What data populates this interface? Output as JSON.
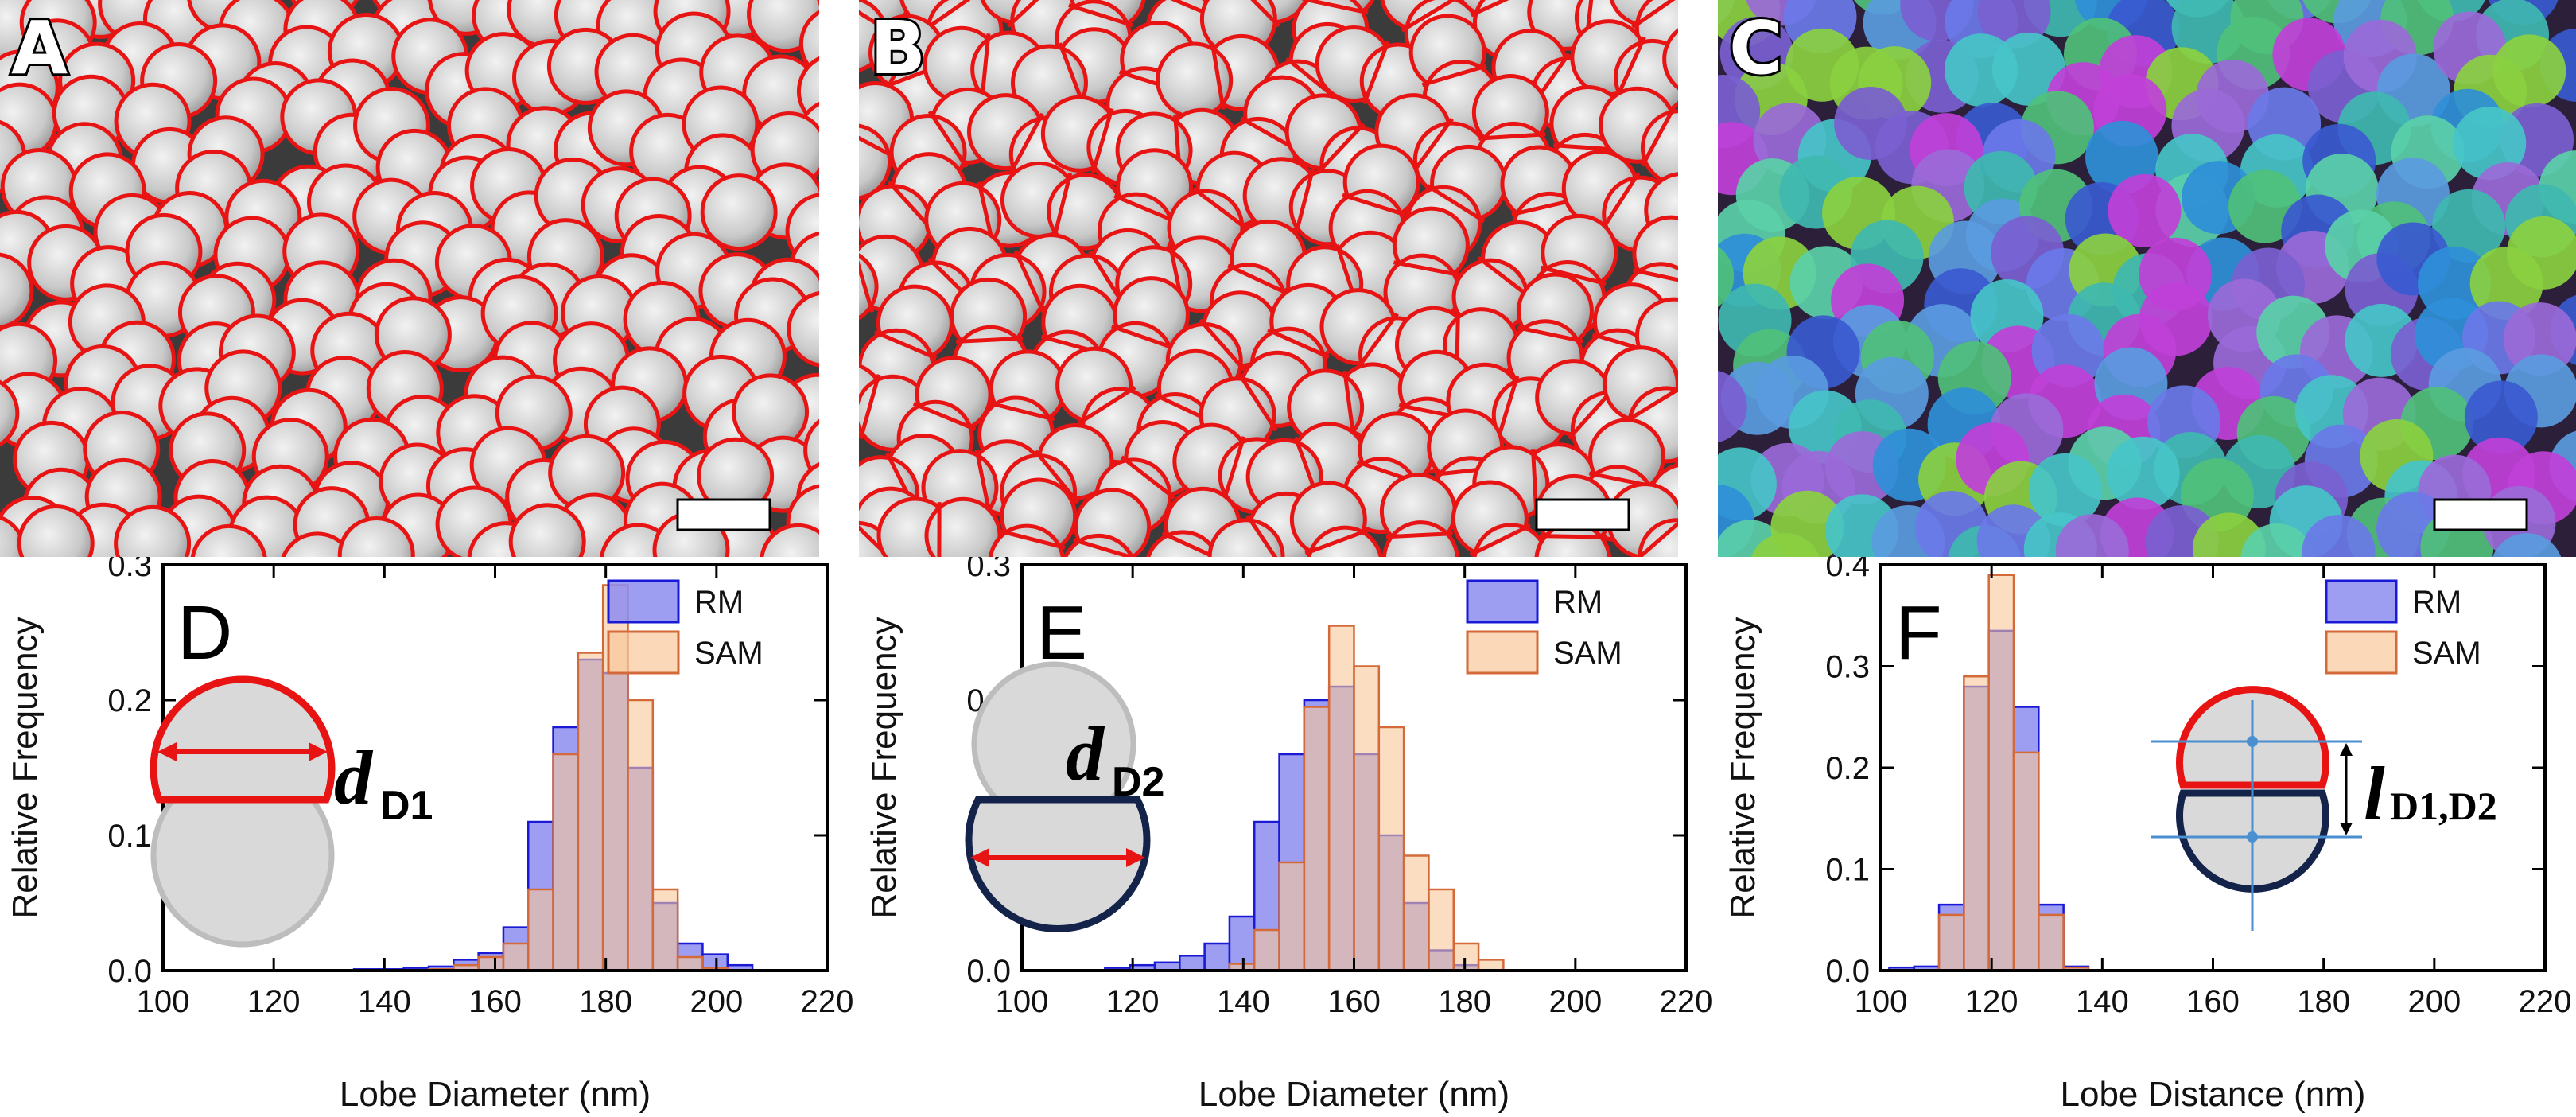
{
  "panels": {
    "A": {
      "label": "A"
    },
    "B": {
      "label": "B"
    },
    "C": {
      "label": "C"
    }
  },
  "colors": {
    "rm_fill": "#8c8cf0",
    "rm_edge": "#1a1ad6",
    "sam_fill": "#f8c89a",
    "sam_edge": "#d46a3a",
    "overlap": "#c77a58",
    "outline_red": "#e81414",
    "dark_navy": "#14234a",
    "guide_blue": "#4a8fd0"
  },
  "chart_data": [
    {
      "type": "bar",
      "panel": "D",
      "xlabel": "Lobe Diameter (nm)",
      "ylabel": "Relative Frequency",
      "xlim": [
        100,
        220
      ],
      "ylim": [
        0,
        0.3
      ],
      "xticks": [
        "100",
        "120",
        "140",
        "160",
        "180",
        "200",
        "220"
      ],
      "yticks": [
        "0.0",
        "0.1",
        "0.2",
        "0.3"
      ],
      "bin_width": 4.5,
      "legend": [
        "RM",
        "SAM"
      ],
      "legend_position": "top-right",
      "annotation": {
        "symbol": "d",
        "subscript": "D1"
      },
      "series": [
        {
          "name": "RM",
          "bins": [
            [
              134.5,
              0.001
            ],
            [
              139,
              0.001
            ],
            [
              143.5,
              0.002
            ],
            [
              148,
              0.003
            ],
            [
              152.5,
              0.008
            ],
            [
              157,
              0.013
            ],
            [
              161.5,
              0.032
            ],
            [
              166,
              0.11
            ],
            [
              170.5,
              0.18
            ],
            [
              175,
              0.23
            ],
            [
              179.5,
              0.22
            ],
            [
              184,
              0.15
            ],
            [
              188.5,
              0.05
            ],
            [
              193,
              0.02
            ],
            [
              197.5,
              0.012
            ],
            [
              202,
              0.004
            ]
          ]
        },
        {
          "name": "SAM",
          "bins": [
            [
              148,
              0.001
            ],
            [
              152.5,
              0.004
            ],
            [
              157,
              0.01
            ],
            [
              161.5,
              0.02
            ],
            [
              166,
              0.06
            ],
            [
              170.5,
              0.16
            ],
            [
              175,
              0.235
            ],
            [
              179.5,
              0.285
            ],
            [
              184,
              0.2
            ],
            [
              188.5,
              0.06
            ],
            [
              193,
              0.01
            ],
            [
              197.5,
              0.002
            ]
          ]
        }
      ]
    },
    {
      "type": "bar",
      "panel": "E",
      "xlabel": "Lobe Diameter (nm)",
      "ylabel": "Relative Frequency",
      "xlim": [
        100,
        220
      ],
      "ylim": [
        0,
        0.3
      ],
      "xticks": [
        "100",
        "120",
        "140",
        "160",
        "180",
        "200",
        "220"
      ],
      "yticks": [
        "0.0",
        "0.1",
        "0.2",
        "0.3"
      ],
      "bin_width": 4.5,
      "legend": [
        "RM",
        "SAM"
      ],
      "legend_position": "top-right",
      "annotation": {
        "symbol": "d",
        "subscript": "D2"
      },
      "series": [
        {
          "name": "RM",
          "bins": [
            [
              115,
              0.002
            ],
            [
              119.5,
              0.004
            ],
            [
              124,
              0.006
            ],
            [
              128.5,
              0.011
            ],
            [
              133,
              0.02
            ],
            [
              137.5,
              0.04
            ],
            [
              142,
              0.11
            ],
            [
              146.5,
              0.16
            ],
            [
              151,
              0.2
            ],
            [
              155.5,
              0.21
            ],
            [
              160,
              0.16
            ],
            [
              164.5,
              0.1
            ],
            [
              169,
              0.05
            ],
            [
              173.5,
              0.015
            ],
            [
              178,
              0.004
            ]
          ]
        },
        {
          "name": "SAM",
          "bins": [
            [
              137.5,
              0.005
            ],
            [
              142,
              0.03
            ],
            [
              146.5,
              0.08
            ],
            [
              151,
              0.195
            ],
            [
              155.5,
              0.255
            ],
            [
              160,
              0.225
            ],
            [
              164.5,
              0.18
            ],
            [
              169,
              0.085
            ],
            [
              173.5,
              0.06
            ],
            [
              178,
              0.02
            ],
            [
              182.5,
              0.008
            ]
          ]
        }
      ]
    },
    {
      "type": "bar",
      "panel": "F",
      "xlabel": "Lobe Distance (nm)",
      "ylabel": "Relative Frequency",
      "xlim": [
        100,
        220
      ],
      "ylim": [
        0,
        0.4
      ],
      "xticks": [
        "100",
        "120",
        "140",
        "160",
        "180",
        "200",
        "220"
      ],
      "yticks": [
        "0.0",
        "0.1",
        "0.2",
        "0.3",
        "0.4"
      ],
      "bin_width": 4.5,
      "legend": [
        "RM",
        "SAM"
      ],
      "legend_position": "top-right",
      "annotation": {
        "symbol": "l",
        "subscript": "D1,D2"
      },
      "series": [
        {
          "name": "RM",
          "bins": [
            [
              101.5,
              0.003
            ],
            [
              106,
              0.004
            ],
            [
              110.5,
              0.065
            ],
            [
              115,
              0.28
            ],
            [
              119.5,
              0.335
            ],
            [
              124,
              0.26
            ],
            [
              128.5,
              0.065
            ],
            [
              133,
              0.004
            ]
          ]
        },
        {
          "name": "SAM",
          "bins": [
            [
              110.5,
              0.055
            ],
            [
              115,
              0.29
            ],
            [
              119.5,
              0.39
            ],
            [
              124,
              0.215
            ],
            [
              128.5,
              0.055
            ],
            [
              133,
              0.003
            ]
          ]
        }
      ]
    }
  ]
}
